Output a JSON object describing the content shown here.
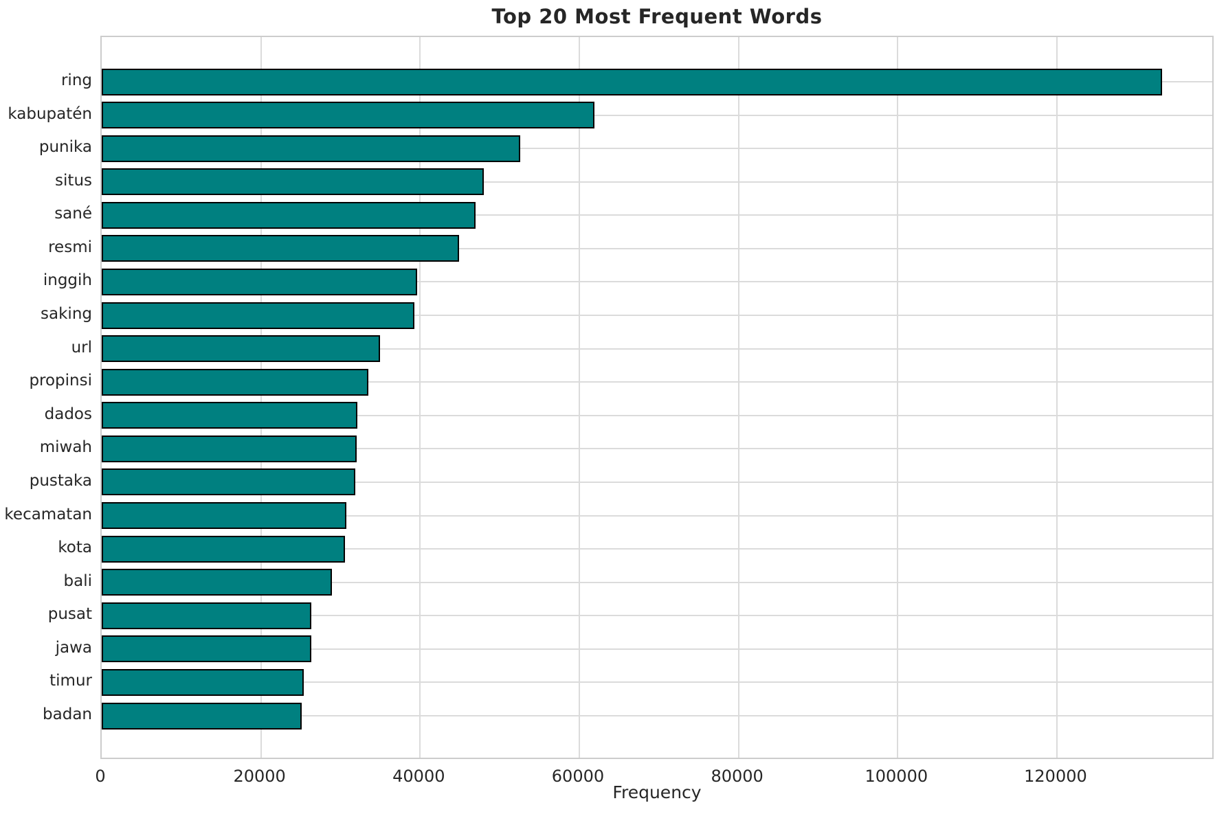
{
  "chart_data": {
    "type": "bar",
    "orientation": "horizontal",
    "title": "Top 20 Most Frequent Words",
    "xlabel": "Frequency",
    "ylabel": "",
    "categories": [
      "ring",
      "kabupatén",
      "punika",
      "situs",
      "sané",
      "resmi",
      "inggih",
      "saking",
      "url",
      "propinsi",
      "dados",
      "miwah",
      "pustaka",
      "kecamatan",
      "kota",
      "bali",
      "pusat",
      "jawa",
      "timur",
      "badan"
    ],
    "values": [
      133200,
      61900,
      52600,
      48000,
      47000,
      44900,
      39600,
      39300,
      35000,
      33500,
      32100,
      32000,
      31900,
      30700,
      30600,
      28900,
      26300,
      26300,
      25400,
      25100
    ],
    "xticks": [
      0,
      20000,
      40000,
      60000,
      80000,
      100000,
      120000
    ],
    "xtick_labels": [
      "0",
      "20000",
      "40000",
      "60000",
      "80000",
      "100000",
      "120000"
    ],
    "xlim": [
      0,
      139860
    ],
    "grid": true,
    "legend_position": "none",
    "colors": {
      "bar_fill": "#008080",
      "bar_edge": "#000000",
      "grid": "#dbdbdb",
      "spine": "#cccccc",
      "text": "#262626",
      "background": "#ffffff"
    }
  }
}
